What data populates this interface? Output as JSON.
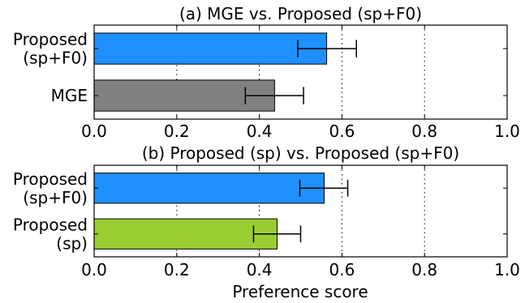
{
  "xlabel": "Preference score",
  "chart_data": [
    {
      "type": "bar",
      "orientation": "horizontal",
      "title": "(a) MGE vs. Proposed (sp+F0)",
      "categories": [
        [
          "Proposed",
          "(sp+F0)"
        ],
        [
          "MGE"
        ]
      ],
      "values": [
        0.563,
        0.437
      ],
      "error_low": [
        0.493,
        0.366
      ],
      "error_high": [
        0.635,
        0.507
      ],
      "colors": [
        "#1e90ff",
        "#808080"
      ],
      "xlim": [
        0.0,
        1.0
      ],
      "xticks": [
        "0.0",
        "0.2",
        "0.4",
        "0.6",
        "0.8",
        "1.0"
      ],
      "grid": "x dotted"
    },
    {
      "type": "bar",
      "orientation": "horizontal",
      "title": "(b) Proposed (sp) vs. Proposed (sp+F0)",
      "categories": [
        [
          "Proposed",
          "(sp+F0)"
        ],
        [
          "Proposed",
          "(sp)"
        ]
      ],
      "values": [
        0.557,
        0.443
      ],
      "error_low": [
        0.498,
        0.386
      ],
      "error_high": [
        0.614,
        0.5
      ],
      "colors": [
        "#1e90ff",
        "#9acd32"
      ],
      "xlim": [
        0.0,
        1.0
      ],
      "xticks": [
        "0.0",
        "0.2",
        "0.4",
        "0.6",
        "0.8",
        "1.0"
      ],
      "grid": "x dotted"
    }
  ]
}
